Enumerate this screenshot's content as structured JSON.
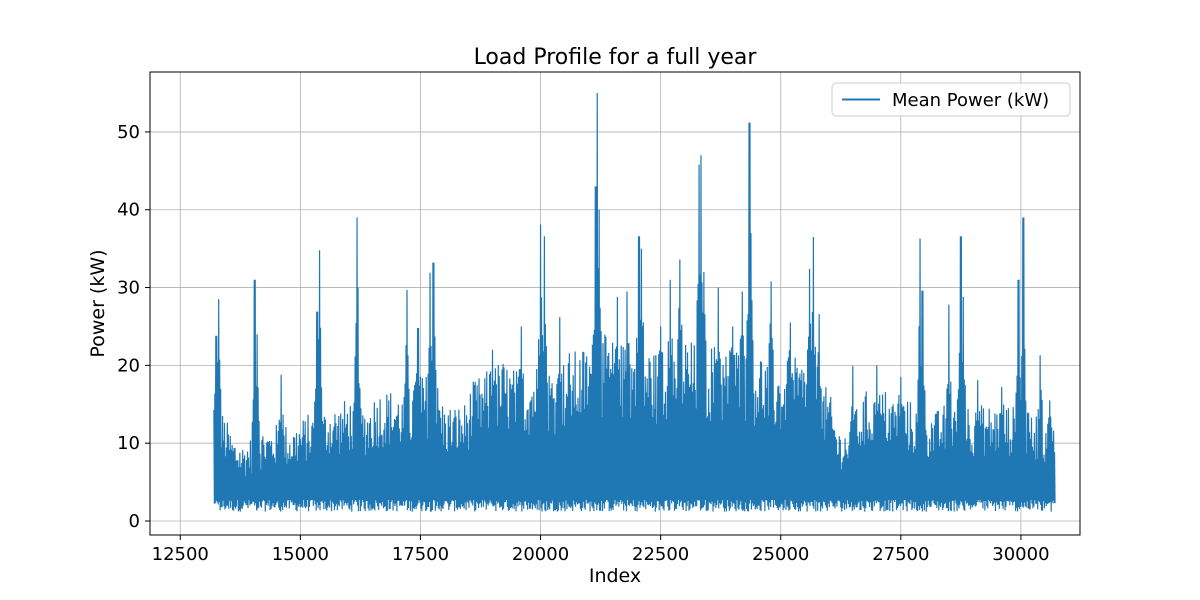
{
  "chart_data": {
    "type": "line",
    "title": "Load Profile for a full year",
    "xlabel": "Index",
    "ylabel": "Power (kW)",
    "xlim": [
      11870,
      31230
    ],
    "ylim": [
      -1.8,
      57.7
    ],
    "xticks": [
      12500,
      15000,
      17500,
      20000,
      22500,
      25000,
      27500,
      30000
    ],
    "xtick_labels": [
      "12500",
      "15000",
      "17500",
      "20000",
      "22500",
      "25000",
      "27500",
      "30000"
    ],
    "yticks": [
      0,
      10,
      20,
      30,
      40,
      50
    ],
    "ytick_labels": [
      "0",
      "10",
      "20",
      "30",
      "40",
      "50"
    ],
    "grid": true,
    "legend_position": "top-right",
    "series": [
      {
        "name": "Mean Power (kW)",
        "color": "#1f77b4",
        "x_start": 13200,
        "x_end": 30700,
        "step": 20,
        "baseline_min": 1.2,
        "envelope": [
          [
            13200,
            14
          ],
          [
            13400,
            14
          ],
          [
            13600,
            11
          ],
          [
            13800,
            10
          ],
          [
            14000,
            11
          ],
          [
            14200,
            12
          ],
          [
            14400,
            12
          ],
          [
            14600,
            13
          ],
          [
            14800,
            12
          ],
          [
            15000,
            13
          ],
          [
            15200,
            14
          ],
          [
            15400,
            14
          ],
          [
            15600,
            15
          ],
          [
            15800,
            15
          ],
          [
            16000,
            16
          ],
          [
            16200,
            15
          ],
          [
            16400,
            15
          ],
          [
            16600,
            17
          ],
          [
            16800,
            17
          ],
          [
            17000,
            17
          ],
          [
            17200,
            16
          ],
          [
            17400,
            18
          ],
          [
            17600,
            19
          ],
          [
            17800,
            19
          ],
          [
            18000,
            15
          ],
          [
            18200,
            15
          ],
          [
            18400,
            15
          ],
          [
            18600,
            18
          ],
          [
            18800,
            19
          ],
          [
            19000,
            20
          ],
          [
            19200,
            21
          ],
          [
            19400,
            20
          ],
          [
            19600,
            19
          ],
          [
            19800,
            20
          ],
          [
            20000,
            21
          ],
          [
            20200,
            20
          ],
          [
            20400,
            20
          ],
          [
            20600,
            22
          ],
          [
            20800,
            22
          ],
          [
            21000,
            23
          ],
          [
            21200,
            24
          ],
          [
            21400,
            24
          ],
          [
            21600,
            23
          ],
          [
            21800,
            23
          ],
          [
            22000,
            23
          ],
          [
            22200,
            23
          ],
          [
            22400,
            22
          ],
          [
            22600,
            23
          ],
          [
            22800,
            24
          ],
          [
            23000,
            24
          ],
          [
            23200,
            23
          ],
          [
            23400,
            23
          ],
          [
            23600,
            23
          ],
          [
            23800,
            22
          ],
          [
            24000,
            23
          ],
          [
            24200,
            23
          ],
          [
            24400,
            22
          ],
          [
            24600,
            22
          ],
          [
            24800,
            21
          ],
          [
            25000,
            20
          ],
          [
            25200,
            21
          ],
          [
            25400,
            21
          ],
          [
            25600,
            20
          ],
          [
            25800,
            18
          ],
          [
            26000,
            17
          ],
          [
            26200,
            12
          ],
          [
            26400,
            12
          ],
          [
            26600,
            15
          ],
          [
            26800,
            17
          ],
          [
            27000,
            17
          ],
          [
            27200,
            17
          ],
          [
            27400,
            16
          ],
          [
            27600,
            16
          ],
          [
            27800,
            15
          ],
          [
            28000,
            15
          ],
          [
            28200,
            14
          ],
          [
            28400,
            15
          ],
          [
            28600,
            16
          ],
          [
            28800,
            16
          ],
          [
            29000,
            15
          ],
          [
            29200,
            15
          ],
          [
            29400,
            15
          ],
          [
            29600,
            15
          ],
          [
            29800,
            15
          ],
          [
            30000,
            14
          ],
          [
            30200,
            14
          ],
          [
            30400,
            14
          ],
          [
            30600,
            13
          ],
          [
            30700,
            12
          ]
        ],
        "peaks": [
          [
            13300,
            28.5
          ],
          [
            13250,
            23.8
          ],
          [
            14050,
            31.0
          ],
          [
            14100,
            24.0
          ],
          [
            14600,
            18.8
          ],
          [
            15400,
            34.8
          ],
          [
            15350,
            26.9
          ],
          [
            16180,
            39.0
          ],
          [
            16200,
            30.0
          ],
          [
            17220,
            29.7
          ],
          [
            17450,
            24.8
          ],
          [
            17770,
            33.2
          ],
          [
            17700,
            31.9
          ],
          [
            19000,
            22.0
          ],
          [
            19600,
            25.0
          ],
          [
            20000,
            38.1
          ],
          [
            20080,
            36.6
          ],
          [
            20400,
            26.2
          ],
          [
            21180,
            55.0
          ],
          [
            21150,
            43.0
          ],
          [
            21220,
            40.0
          ],
          [
            21600,
            28.8
          ],
          [
            21800,
            29.5
          ],
          [
            22050,
            36.6
          ],
          [
            22100,
            35.0
          ],
          [
            22500,
            25.0
          ],
          [
            22700,
            31.0
          ],
          [
            22900,
            33.6
          ],
          [
            23300,
            45.8
          ],
          [
            23340,
            47.0
          ],
          [
            23400,
            32.0
          ],
          [
            23700,
            30.0
          ],
          [
            24000,
            25.0
          ],
          [
            24200,
            29.5
          ],
          [
            24350,
            51.2
          ],
          [
            24380,
            37.0
          ],
          [
            24800,
            30.8
          ],
          [
            25200,
            25.5
          ],
          [
            25600,
            32.4
          ],
          [
            25680,
            36.5
          ],
          [
            25800,
            26.6
          ],
          [
            26500,
            19.9
          ],
          [
            27000,
            20.0
          ],
          [
            27500,
            18.5
          ],
          [
            27900,
            36.3
          ],
          [
            27950,
            29.6
          ],
          [
            28500,
            27.8
          ],
          [
            28750,
            36.6
          ],
          [
            28800,
            28.8
          ],
          [
            29100,
            18.1
          ],
          [
            29600,
            17.2
          ],
          [
            29950,
            31.0
          ],
          [
            30050,
            39.0
          ],
          [
            30400,
            21.3
          ],
          [
            30600,
            15.5
          ]
        ]
      }
    ]
  }
}
